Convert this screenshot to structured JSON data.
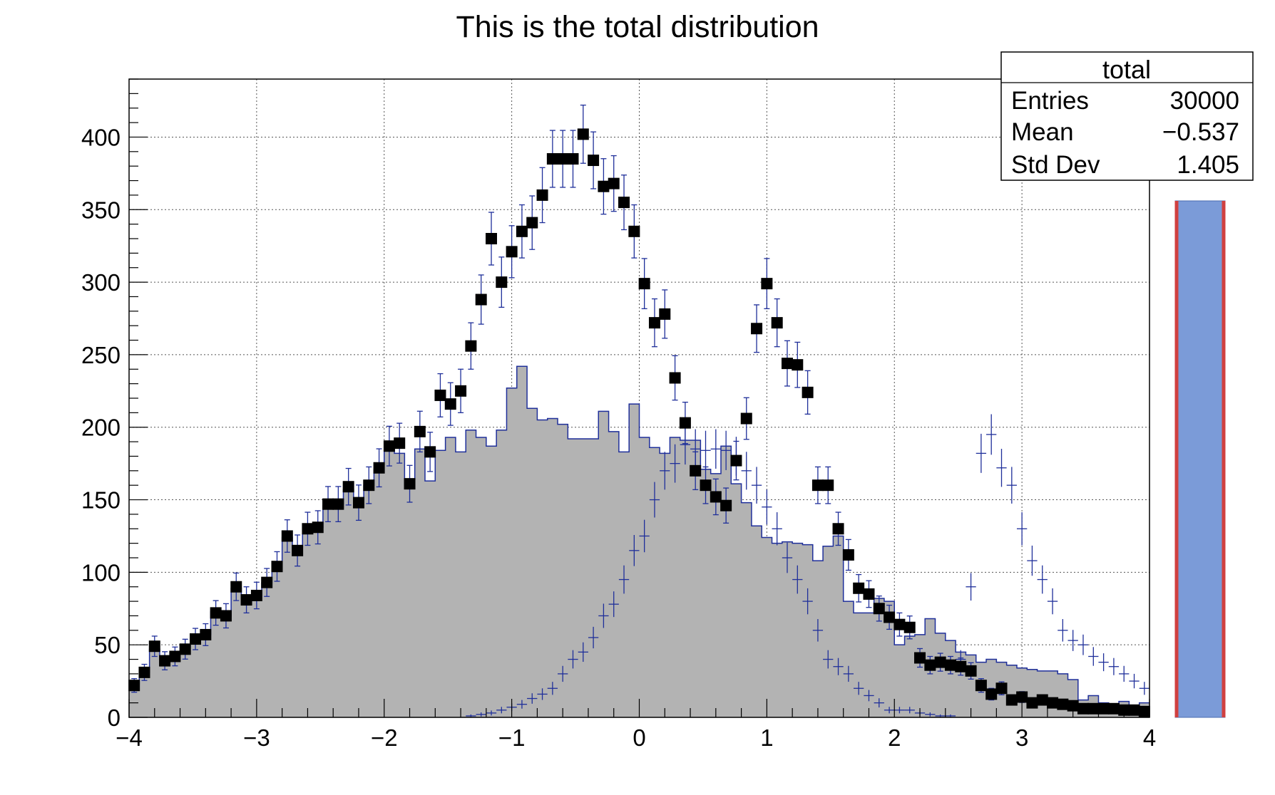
{
  "chart_data": {
    "type": "histogram",
    "title": "This is the total distribution",
    "xlabel": "",
    "ylabel": "",
    "xlim": [
      -4,
      4
    ],
    "ylim": [
      0,
      440
    ],
    "bins": 100,
    "grid": true,
    "x_tick_labels": [
      "−4",
      "−3",
      "−2",
      "−1",
      "0",
      "1",
      "2",
      "3",
      "4"
    ],
    "y_tick_labels": [
      "0",
      "50",
      "100",
      "150",
      "200",
      "250",
      "300",
      "350",
      "400"
    ],
    "x_ticks": [
      -4,
      -3,
      -2,
      -1,
      0,
      1,
      2,
      3,
      4
    ],
    "y_ticks": [
      0,
      50,
      100,
      150,
      200,
      250,
      300,
      350,
      400
    ],
    "stats_box": {
      "title": "total",
      "rows": [
        {
          "label": "Entries",
          "value": "30000"
        },
        {
          "label": "Mean",
          "value": "−0.537"
        },
        {
          "label": "Std Dev",
          "value": "1.405"
        }
      ],
      "placement": "top-right"
    },
    "series": [
      {
        "style": "filled-histogram",
        "fill": "#b3b3b3",
        "line": "#1f2f9a",
        "values": [
          23,
          31,
          47,
          42,
          45,
          49,
          55,
          57,
          73,
          70,
          89,
          82,
          84,
          93,
          102,
          124,
          116,
          130,
          131,
          146,
          147,
          157,
          150,
          160,
          171,
          186,
          182,
          160,
          185,
          163,
          184,
          193,
          183,
          198,
          193,
          187,
          198,
          227,
          242,
          213,
          205,
          206,
          202,
          192,
          192,
          192,
          211,
          197,
          183,
          216,
          193,
          186,
          182,
          193,
          191,
          191,
          171,
          168,
          187,
          161,
          148,
          132,
          124,
          120,
          121,
          120,
          119,
          108,
          118,
          125,
          80,
          72,
          72,
          82,
          80,
          50,
          56,
          57,
          68,
          58,
          53,
          45,
          43,
          38,
          40,
          38,
          36,
          34,
          33,
          32,
          32,
          30,
          26,
          12,
          15,
          10,
          8,
          11,
          8,
          10
        ]
      },
      {
        "style": "cross-markers",
        "color": "#1f2f9a",
        "values": [
          0,
          0,
          0,
          0,
          0,
          0,
          0,
          0,
          0,
          0,
          0,
          0,
          0,
          0,
          0,
          0,
          0,
          0,
          0,
          0,
          0,
          0,
          0,
          0,
          0,
          0,
          0,
          0,
          0,
          0,
          0,
          0,
          0,
          1,
          2,
          3,
          5,
          7,
          9,
          13,
          16,
          20,
          30,
          40,
          45,
          55,
          70,
          78,
          95,
          115,
          125,
          150,
          170,
          175,
          188,
          185,
          184,
          185,
          184,
          180,
          170,
          160,
          145,
          130,
          110,
          95,
          80,
          60,
          40,
          35,
          30,
          20,
          15,
          10,
          5,
          5,
          5,
          3,
          2,
          1,
          1,
          40,
          90,
          182,
          195,
          172,
          160,
          130,
          108,
          95,
          80,
          60,
          53,
          50,
          42,
          38,
          35,
          30,
          25,
          20
        ]
      },
      {
        "style": "square-markers-with-errors",
        "color": "#000000",
        "error_color": "#1f2f9a",
        "values": [
          22,
          31,
          49,
          39,
          42,
          47,
          54,
          57,
          72,
          70,
          90,
          81,
          84,
          93,
          104,
          125,
          115,
          130,
          131,
          147,
          147,
          159,
          148,
          160,
          172,
          187,
          189,
          161,
          197,
          183,
          222,
          216,
          225,
          256,
          288,
          330,
          300,
          321,
          335,
          341,
          360,
          385,
          385,
          385,
          402,
          384,
          366,
          368,
          355,
          335,
          299,
          272,
          278,
          234,
          203,
          170,
          160,
          152,
          146,
          177,
          206,
          268,
          299,
          272,
          244,
          243,
          224,
          160,
          160,
          130,
          112,
          89,
          85,
          75,
          69,
          64,
          62,
          41,
          36,
          38,
          36,
          35,
          32,
          22,
          16,
          20,
          12,
          14,
          10,
          12,
          10,
          9,
          8,
          6,
          6,
          6,
          6,
          5,
          5,
          4
        ]
      }
    ],
    "side_bar": {
      "fill": "#7b9bd8",
      "edge": "#d04040"
    }
  }
}
